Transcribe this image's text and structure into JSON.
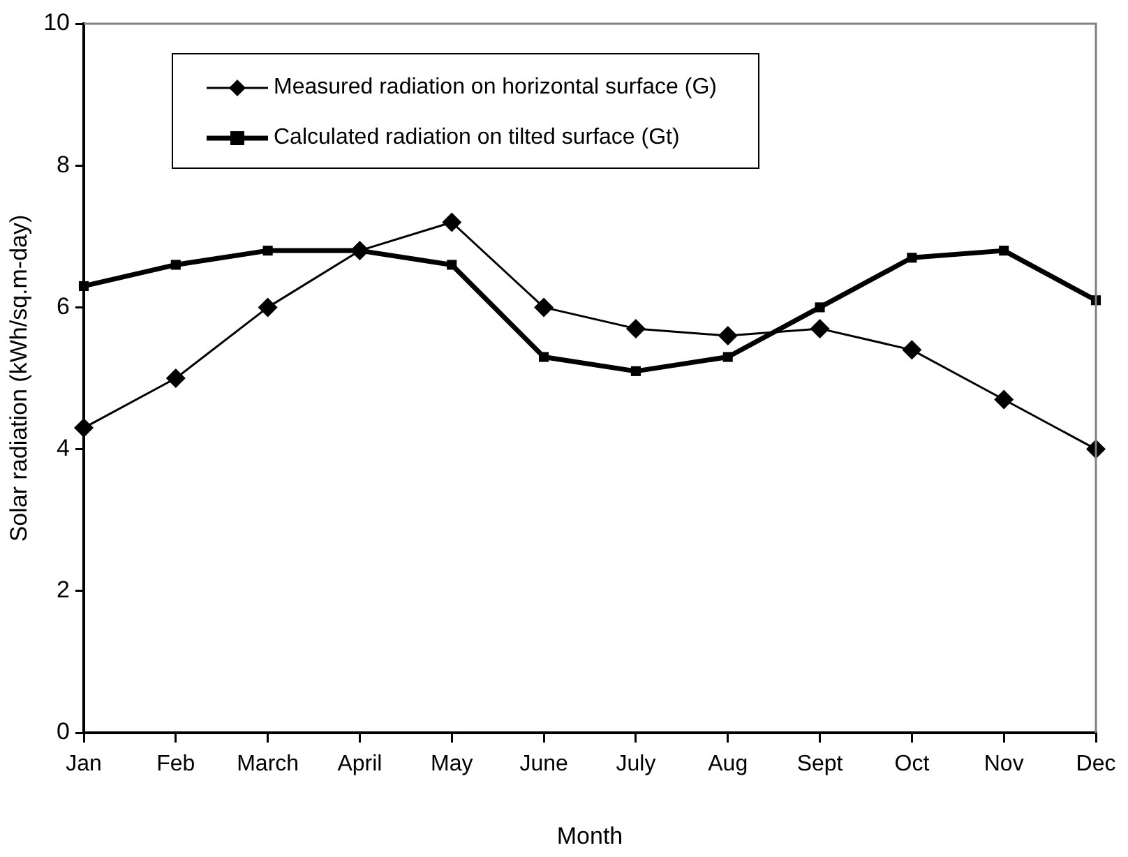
{
  "chart_data": {
    "type": "line",
    "xlabel": "Month",
    "ylabel": "Solar radiation (kWh/sq.m-day)",
    "categories": [
      "Jan",
      "Feb",
      "March",
      "April",
      "May",
      "June",
      "July",
      "Aug",
      "Sept",
      "Oct",
      "Nov",
      "Dec"
    ],
    "series": [
      {
        "name": "Measured radiation on horizontal surface (G)",
        "color": "#000000",
        "marker": "diamond",
        "values": [
          4.3,
          5.0,
          6.0,
          6.8,
          7.2,
          6.0,
          5.7,
          5.6,
          5.7,
          5.4,
          4.7,
          4.0
        ]
      },
      {
        "name": "Calculated radiation on tilted surface (Gt)",
        "color": "#000000",
        "marker": "square",
        "values": [
          6.3,
          6.6,
          6.8,
          6.8,
          6.6,
          5.3,
          5.1,
          5.3,
          6.0,
          6.7,
          6.8,
          6.1
        ]
      }
    ],
    "ylim": [
      0,
      10
    ],
    "yticks": [
      0,
      2,
      4,
      6,
      8,
      10
    ],
    "grid": false,
    "legend": "top left",
    "line_style": "solid"
  }
}
